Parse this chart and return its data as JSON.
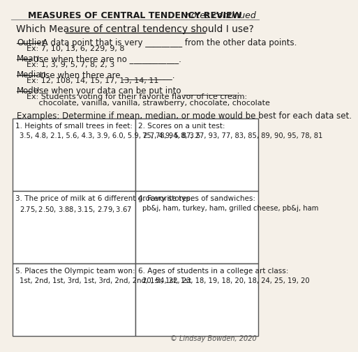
{
  "title_main": "MEASURES OF CENTRAL TENDENCY REVIEW",
  "title_cursive": " notes continued",
  "subtitle": "Which Measure of central tendency should I use?",
  "bg_color": "#f5f0e8",
  "sections": [
    {
      "label": "Outlier:",
      "text": " A data point that is very _________ from the other data points.",
      "ex": "Ex: 7, 10, 13, 6, 229, 9, 8",
      "ex_lines": null
    },
    {
      "label": "Mean:",
      "text": " Use when there are no ____________.",
      "ex": "Ex: 1, 3, 9, 5, 7, 8, 2, 3",
      "ex_lines": null
    },
    {
      "label": "Median:",
      "text": " Use when there are ____________.",
      "ex": "Ex: 12, 108, 14, 15, 17, 13, 14, 11",
      "ex_lines": null
    },
    {
      "label": "Mode:",
      "text": " Use when your data can be put into _____________.",
      "ex": null,
      "ex_lines": [
        "Ex: Students voting for their favorite flavor of ice cream:",
        "     chocolate, vanilla, vanilla, strawberry, chocolate, chocolate"
      ]
    }
  ],
  "examples_intro": "Examples: Determine if mean, median, or mode would be best for each data set.",
  "boxes": [
    {
      "number": "1.",
      "title": "Heights of small trees in feet:",
      "data": "3.5, 4.8, 2.1, 5.6, 4.3, 3.9, 6.0, 5.9, 2.7, 4.9, 5.8, 3.5"
    },
    {
      "number": "2.",
      "title": "Scores on a unit test:",
      "data": "75, 78, 94, 87, 27, 93, 77, 83, 85, 89, 90, 95, 78, 81"
    },
    {
      "number": "3.",
      "title": "The price of milk at 6 different grocery stores:",
      "data": "$2.75, $2.50, $3.88, $3.15, $2.79, $3.67"
    },
    {
      "number": "4.",
      "title": "Favorite types of sandwiches:",
      "data": "pb&j, ham, turkey, ham, grilled cheese, pb&j, ham"
    },
    {
      "number": "5.",
      "title": "Places the Olympic team won:",
      "data": "1st, 2nd, 1st, 3rd, 1st, 3rd, 2nd, 2nd, 1st, 1st, 1st"
    },
    {
      "number": "6.",
      "title": "Ages of students in a college art class:",
      "data": "20, 54, 22, 23, 18, 19, 18, 20, 18, 24, 25, 19, 20"
    }
  ],
  "copyright": "© Lindsay Bowden, 2020"
}
